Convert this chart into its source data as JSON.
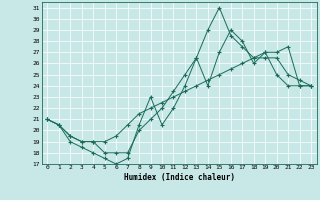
{
  "xlabel": "Humidex (Indice chaleur)",
  "ylabel": "",
  "bg_color": "#c8e8e8",
  "line_color": "#1a6b5a",
  "xlim": [
    -0.5,
    23.5
  ],
  "ylim": [
    17,
    31.5
  ],
  "yticks": [
    17,
    18,
    19,
    20,
    21,
    22,
    23,
    24,
    25,
    26,
    27,
    28,
    29,
    30,
    31
  ],
  "xticks": [
    0,
    1,
    2,
    3,
    4,
    5,
    6,
    7,
    8,
    9,
    10,
    11,
    12,
    13,
    14,
    15,
    16,
    17,
    18,
    19,
    20,
    21,
    22,
    23
  ],
  "series1_x": [
    0,
    1,
    2,
    3,
    4,
    5,
    6,
    7,
    8,
    9,
    10,
    11,
    12,
    13,
    14,
    15,
    16,
    17,
    18,
    19,
    20,
    21,
    22,
    23
  ],
  "series1_y": [
    21,
    20.5,
    19,
    18.5,
    18,
    17.5,
    17,
    17.5,
    20.5,
    23,
    20.5,
    22,
    24,
    26.5,
    24,
    27,
    29,
    28,
    26,
    27,
    25,
    24,
    24,
    24
  ],
  "series2_x": [
    0,
    1,
    2,
    3,
    4,
    5,
    6,
    7,
    8,
    9,
    10,
    11,
    12,
    13,
    14,
    15,
    16,
    17,
    18,
    19,
    20,
    21,
    22,
    23
  ],
  "series2_y": [
    21,
    20.5,
    19.5,
    19,
    19,
    19,
    19.5,
    20.5,
    21.5,
    22,
    22.5,
    23,
    23.5,
    24,
    24.5,
    25,
    25.5,
    26,
    26.5,
    27,
    27,
    27.5,
    24,
    24
  ],
  "series3_x": [
    0,
    1,
    2,
    3,
    4,
    5,
    6,
    7,
    8,
    9,
    10,
    11,
    12,
    13,
    14,
    15,
    16,
    17,
    18,
    19,
    20,
    21,
    22,
    23
  ],
  "series3_y": [
    21,
    20.5,
    19.5,
    19,
    19,
    18,
    18,
    18,
    20,
    21,
    22,
    23.5,
    25,
    26.5,
    29,
    31,
    28.5,
    27.5,
    26.5,
    26.5,
    26.5,
    25,
    24.5,
    24
  ],
  "font_size_ticks": 4.5,
  "font_size_xlabel": 5.5
}
